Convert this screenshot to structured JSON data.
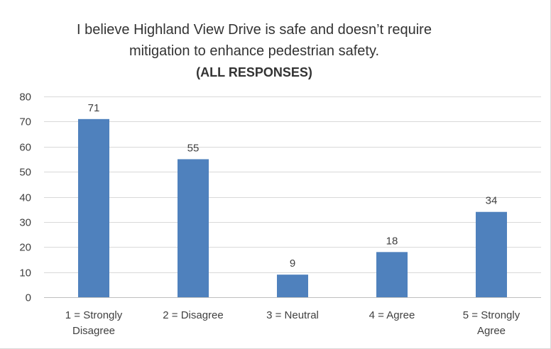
{
  "chart_data": {
    "type": "bar",
    "title_lines": [
      "I believe Highland View Drive is safe and doesn’t require",
      "mitigation to enhance pedestrian safety."
    ],
    "subtitle": "(ALL RESPONSES)",
    "categories": [
      [
        "1 = Strongly",
        "Disagree"
      ],
      [
        "2 = Disagree"
      ],
      [
        "3 = Neutral"
      ],
      [
        "4 = Agree"
      ],
      [
        "5 = Strongly",
        "Agree"
      ]
    ],
    "values": [
      71,
      55,
      9,
      18,
      34
    ],
    "data_labels": [
      "71",
      "55",
      "9",
      "18",
      "34"
    ],
    "ylim": [
      0,
      80
    ],
    "yticks": [
      0,
      10,
      20,
      30,
      40,
      50,
      60,
      70,
      80
    ],
    "grid": true,
    "legend": "none",
    "bar_color": "#4f81bd",
    "grid_color": "#d9d9d9",
    "axis_color": "#bfbfbf"
  }
}
